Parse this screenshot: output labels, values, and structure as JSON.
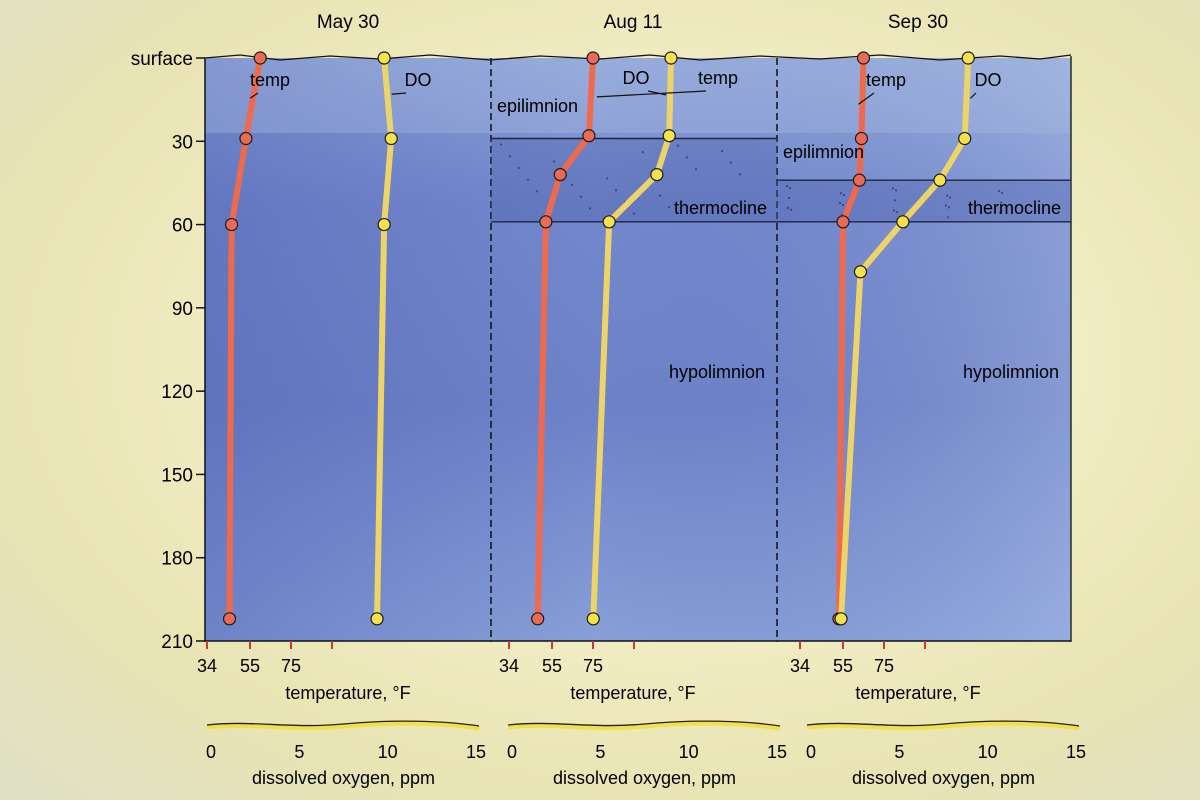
{
  "chart_data": {
    "type": "line",
    "y_axis": {
      "range": [
        0,
        210
      ],
      "tick_values": [
        0,
        30,
        60,
        90,
        120,
        150,
        180,
        210
      ],
      "tick_labels": [
        "surface",
        "30",
        "60",
        "90",
        "120",
        "150",
        "180",
        "210"
      ],
      "inverted": true
    },
    "temperature_axis": {
      "label": "temperature, °F",
      "range": [
        34,
        95
      ],
      "tick_values": [
        34,
        55,
        75
      ],
      "tick_labels": [
        "34",
        "55",
        "75"
      ]
    },
    "oxygen_axis": {
      "label": "dissolved oxygen, ppm",
      "range": [
        0,
        15
      ],
      "tick_values": [
        0,
        5,
        10,
        15
      ],
      "tick_labels": [
        "0",
        "5",
        "10",
        "15"
      ]
    },
    "grid": false,
    "colors": {
      "temp": "#ef6a4c",
      "temp_marker": "#e96a55",
      "DO": "#ecd468",
      "DO_marker": "#f7e24c",
      "water_light": "#9cb4df",
      "water_dark": "#5e74bd"
    },
    "panels": [
      {
        "title": "May 30",
        "layers": [],
        "series": [
          {
            "name": "temp",
            "axis": "temperature",
            "points": [
              [
                60,
                0
              ],
              [
                53,
                29
              ],
              [
                46,
                60
              ],
              [
                45,
                202
              ]
            ]
          },
          {
            "name": "DO",
            "axis": "oxygen",
            "points": [
              [
                9.8,
                0
              ],
              [
                10.2,
                29
              ],
              [
                9.8,
                60
              ],
              [
                9.4,
                202
              ]
            ]
          }
        ],
        "annotations": [
          {
            "text": "temp",
            "series": "temp"
          },
          {
            "text": "DO",
            "series": "DO"
          }
        ]
      },
      {
        "title": "Aug 11",
        "layers": [
          {
            "name": "epilimnion",
            "from": 0,
            "to": 29
          },
          {
            "name": "thermocline",
            "from": 29,
            "to": 59
          },
          {
            "name": "hypolimnion",
            "from": 59,
            "to": 210
          }
        ],
        "series": [
          {
            "name": "temp",
            "axis": "temperature",
            "points": [
              [
                75,
                0
              ],
              [
                73,
                28
              ],
              [
                59,
                42
              ],
              [
                52,
                59
              ],
              [
                48,
                202
              ]
            ]
          },
          {
            "name": "DO",
            "axis": "oxygen",
            "points": [
              [
                9.0,
                0
              ],
              [
                8.9,
                28
              ],
              [
                8.2,
                42
              ],
              [
                5.5,
                59
              ],
              [
                4.6,
                202
              ]
            ]
          }
        ],
        "annotations": [
          {
            "text": "DO",
            "series": "DO"
          },
          {
            "text": "temp",
            "series": "temp"
          }
        ]
      },
      {
        "title": "Sep 30",
        "layers": [
          {
            "name": "epilimnion",
            "from": 0,
            "to": 44
          },
          {
            "name": "thermocline",
            "from": 44,
            "to": 59
          },
          {
            "name": "hypolimnion",
            "from": 59,
            "to": 210
          }
        ],
        "series": [
          {
            "name": "temp",
            "axis": "temperature",
            "points": [
              [
                65,
                0
              ],
              [
                64,
                29
              ],
              [
                63,
                44
              ],
              [
                55,
                59
              ],
              [
                53,
                202
              ]
            ]
          },
          {
            "name": "DO",
            "axis": "oxygen",
            "points": [
              [
                8.9,
                0
              ],
              [
                8.7,
                29
              ],
              [
                7.3,
                44
              ],
              [
                5.2,
                59
              ],
              [
                2.8,
                77
              ],
              [
                1.7,
                202
              ]
            ]
          }
        ],
        "annotations": [
          {
            "text": "temp",
            "series": "temp"
          },
          {
            "text": "DO",
            "series": "DO"
          }
        ]
      }
    ]
  }
}
